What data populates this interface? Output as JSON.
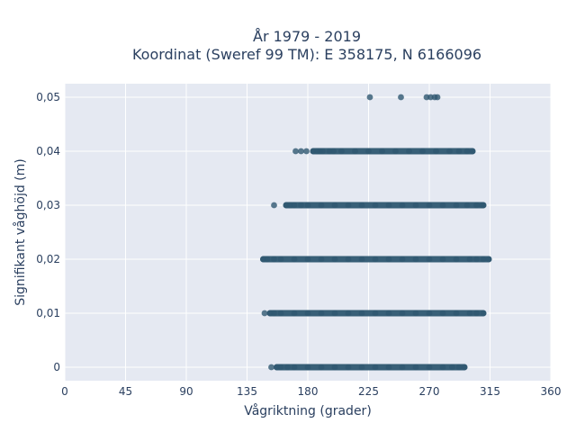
{
  "chart_data": {
    "type": "scatter",
    "title_line1": "År 1979 - 2019",
    "title_line2": "Koordinat (Sweref 99 TM): E 358175, N 6166096",
    "xlabel": "Vågriktning (grader)",
    "ylabel": "Signifikant våghöjd (m)",
    "xlim": [
      0,
      360
    ],
    "ylim": [
      -0.0025,
      0.0525
    ],
    "x_ticks": [
      0,
      45,
      90,
      135,
      180,
      225,
      270,
      315,
      360
    ],
    "x_tick_labels": [
      "0",
      "45",
      "90",
      "135",
      "180",
      "225",
      "270",
      "315",
      "360"
    ],
    "y_ticks": [
      0,
      0.01,
      0.02,
      0.03,
      0.04,
      0.05
    ],
    "y_tick_labels": [
      "0",
      "0,01",
      "0,02",
      "0,03",
      "0,04",
      "0,05"
    ],
    "grid": true,
    "marker_color": "#2f5871",
    "background_color": "#e5e9f2",
    "series": [
      {
        "points": [
          [
            226,
            0.05
          ],
          [
            249,
            0.05
          ],
          [
            268,
            0.05
          ],
          [
            271,
            0.05
          ],
          [
            274,
            0.05
          ],
          [
            276,
            0.05
          ],
          [
            171,
            0.04
          ],
          [
            175,
            0.04
          ],
          [
            179,
            0.04
          ],
          [
            184,
            0.04
          ],
          [
            187,
            0.04
          ],
          [
            189,
            0.04
          ],
          [
            191,
            0.04
          ],
          [
            196,
            0.04
          ],
          [
            199,
            0.04
          ],
          [
            205,
            0.04
          ],
          [
            215,
            0.04
          ],
          [
            225,
            0.04
          ],
          [
            235,
            0.04
          ],
          [
            245,
            0.04
          ],
          [
            255,
            0.04
          ],
          [
            265,
            0.04
          ],
          [
            275,
            0.04
          ],
          [
            285,
            0.04
          ],
          [
            292,
            0.04
          ],
          [
            298,
            0.04
          ],
          [
            302,
            0.04
          ],
          [
            155,
            0.03
          ],
          [
            164,
            0.03
          ],
          [
            167,
            0.03
          ],
          [
            170,
            0.03
          ],
          [
            175,
            0.03
          ],
          [
            180,
            0.03
          ],
          [
            190,
            0.03
          ],
          [
            200,
            0.03
          ],
          [
            210,
            0.03
          ],
          [
            220,
            0.03
          ],
          [
            230,
            0.03
          ],
          [
            240,
            0.03
          ],
          [
            250,
            0.03
          ],
          [
            260,
            0.03
          ],
          [
            270,
            0.03
          ],
          [
            280,
            0.03
          ],
          [
            290,
            0.03
          ],
          [
            298,
            0.03
          ],
          [
            305,
            0.03
          ],
          [
            309,
            0.03
          ],
          [
            310,
            0.03
          ],
          [
            147,
            0.02
          ],
          [
            150,
            0.02
          ],
          [
            155,
            0.02
          ],
          [
            160,
            0.02
          ],
          [
            170,
            0.02
          ],
          [
            180,
            0.02
          ],
          [
            190,
            0.02
          ],
          [
            200,
            0.02
          ],
          [
            210,
            0.02
          ],
          [
            220,
            0.02
          ],
          [
            230,
            0.02
          ],
          [
            240,
            0.02
          ],
          [
            250,
            0.02
          ],
          [
            260,
            0.02
          ],
          [
            270,
            0.02
          ],
          [
            280,
            0.02
          ],
          [
            290,
            0.02
          ],
          [
            300,
            0.02
          ],
          [
            305,
            0.02
          ],
          [
            310,
            0.02
          ],
          [
            314,
            0.02
          ],
          [
            148,
            0.01
          ],
          [
            152,
            0.01
          ],
          [
            155,
            0.01
          ],
          [
            160,
            0.01
          ],
          [
            170,
            0.01
          ],
          [
            180,
            0.01
          ],
          [
            190,
            0.01
          ],
          [
            200,
            0.01
          ],
          [
            210,
            0.01
          ],
          [
            220,
            0.01
          ],
          [
            230,
            0.01
          ],
          [
            240,
            0.01
          ],
          [
            250,
            0.01
          ],
          [
            260,
            0.01
          ],
          [
            270,
            0.01
          ],
          [
            280,
            0.01
          ],
          [
            290,
            0.01
          ],
          [
            300,
            0.01
          ],
          [
            305,
            0.01
          ],
          [
            310,
            0.01
          ],
          [
            153,
            0
          ],
          [
            157,
            0
          ],
          [
            160,
            0
          ],
          [
            165,
            0
          ],
          [
            170,
            0
          ],
          [
            180,
            0
          ],
          [
            190,
            0
          ],
          [
            200,
            0
          ],
          [
            210,
            0
          ],
          [
            220,
            0
          ],
          [
            230,
            0
          ],
          [
            240,
            0
          ],
          [
            250,
            0
          ],
          [
            260,
            0
          ],
          [
            270,
            0
          ],
          [
            280,
            0
          ],
          [
            287,
            0
          ],
          [
            292,
            0
          ],
          [
            296,
            0
          ]
        ],
        "dense_ranges": [
          {
            "y": 0.04,
            "x_from": 184,
            "x_to": 302
          },
          {
            "y": 0.03,
            "x_from": 164,
            "x_to": 310
          },
          {
            "y": 0.02,
            "x_from": 147,
            "x_to": 314
          },
          {
            "y": 0.01,
            "x_from": 152,
            "x_to": 310
          },
          {
            "y": 0,
            "x_from": 157,
            "x_to": 296
          }
        ]
      }
    ]
  }
}
